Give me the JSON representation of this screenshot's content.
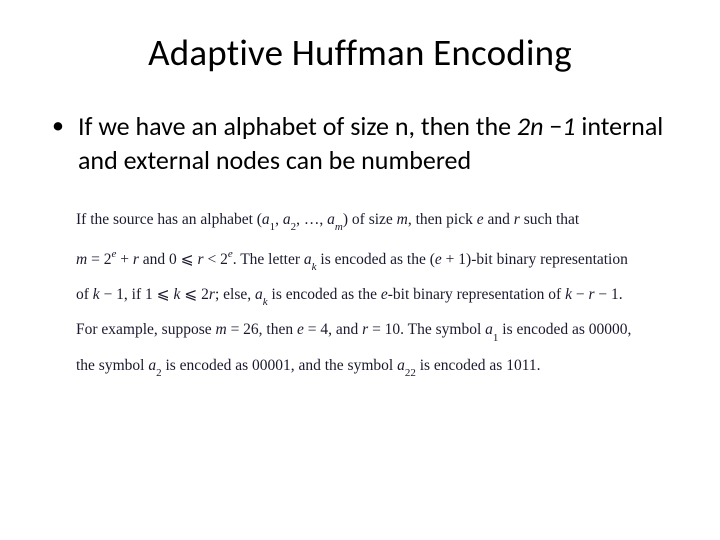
{
  "title": "Adaptive Huffman Encoding",
  "bullet": {
    "prefix": "If we have an alphabet of size n, then the ",
    "italic1": "2n",
    "mid": " −",
    "italic2": "1",
    "suffix": " internal and external nodes can be numbered"
  },
  "math": {
    "line1_a": "If the source has an alphabet (",
    "line1_b": ") of size ",
    "line1_c": ", then pick ",
    "line1_d": " and ",
    "line1_e": " such that",
    "a1": "a",
    "a1s": "1",
    "a2": "a",
    "a2s": "2",
    "am": "a",
    "ams": "m",
    "m": "m",
    "e": "e",
    "r": "r",
    "k": "k",
    "line2_a": " and 0 ",
    "line2_b": ". The letter ",
    "line2_c": " is encoded as the (",
    "line2_d": " + 1)-bit binary representation",
    "twoe": "2",
    "ak": "a",
    "aks": "k",
    "line3_a": "of ",
    "line3_b": " − 1, if 1 ",
    "line3_c": " 2",
    "line3_d": "; else, ",
    "line3_e": " is encoded as the ",
    "line3_f": "-bit binary representation of ",
    "line3_g": " − 1.",
    "line4_a": "For example, suppose ",
    "line4_b": " = 26, then ",
    "line4_c": " = 4, and ",
    "line4_d": " = 10. The symbol ",
    "line4_e": " is encoded as 00000,",
    "line5_a": "the symbol ",
    "line5_b": " is encoded as 00001, and the symbol ",
    "line5_c": " is encoded as 1011.",
    "a22": "a",
    "a22s": "22",
    "eq": " = ",
    "plus": " + ",
    "comma": ", ",
    "ellipsis": ", …, ",
    "leq": "⩽",
    "lt": "<"
  },
  "colors": {
    "text": "#000000",
    "math_text": "#1a1a2e",
    "bg": "#ffffff"
  },
  "fonts": {
    "title_size": 37,
    "body_size": 26,
    "math_size": 15.5
  }
}
